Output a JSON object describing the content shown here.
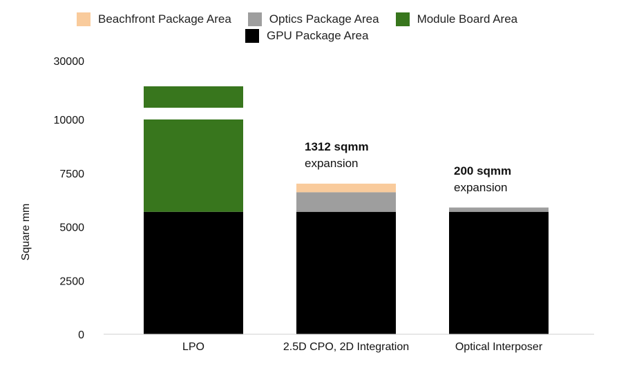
{
  "chart_data": {
    "type": "bar",
    "stacked": true,
    "categories": [
      "LPO",
      "2.5D CPO, 2D Integration",
      "Optical Interposer"
    ],
    "ylabel": "Square mm",
    "xlabel": "",
    "y_ticks": [
      "0",
      "2500",
      "5000",
      "7500",
      "10000",
      "30000"
    ],
    "axis_break": {
      "from": 10000,
      "to": 28000
    },
    "ylim": [
      0,
      30000
    ],
    "series": [
      {
        "name": "GPU Package Area",
        "color": "#000000",
        "values": [
          5700,
          5700,
          5700
        ]
      },
      {
        "name": "Optics Package Area",
        "color": "#9e9e9e",
        "values": [
          0,
          912,
          200
        ]
      },
      {
        "name": "Beachfront Package Area",
        "color": "#f9cb9c",
        "values": [
          0,
          400,
          0
        ]
      },
      {
        "name": "Module Board Area",
        "color": "#38761d",
        "values": [
          23300,
          0,
          0
        ]
      }
    ],
    "legend": {
      "placement": "top",
      "row1": [
        "Beachfront Package Area",
        "Optics Package Area",
        "Module Board Area"
      ],
      "row2": [
        "GPU Package Area"
      ]
    },
    "annotations": [
      {
        "category": "2.5D CPO, 2D Integration",
        "bold": "1312 sqmm",
        "text": "expansion"
      },
      {
        "category": "Optical Interposer",
        "bold": "200 sqmm",
        "text": "expansion"
      }
    ]
  }
}
